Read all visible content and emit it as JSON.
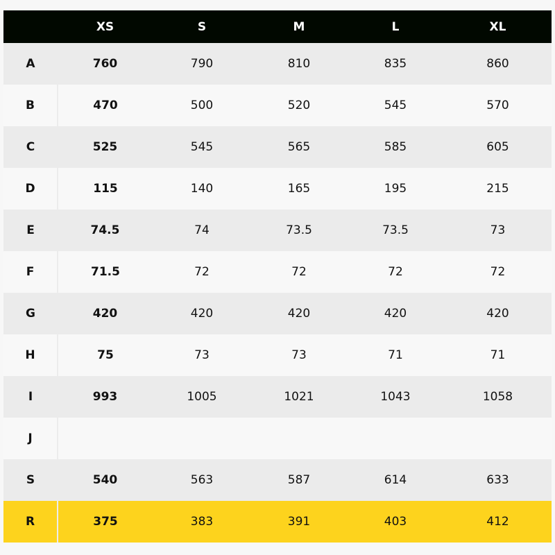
{
  "header": {
    "corner": "",
    "sizes": [
      "XS",
      "S",
      "M",
      "L",
      "XL"
    ]
  },
  "rows": [
    {
      "label": "A",
      "values": [
        "760",
        "790",
        "810",
        "835",
        "860"
      ]
    },
    {
      "label": "B",
      "values": [
        "470",
        "500",
        "520",
        "545",
        "570"
      ]
    },
    {
      "label": "C",
      "values": [
        "525",
        "545",
        "565",
        "585",
        "605"
      ]
    },
    {
      "label": "D",
      "values": [
        "115",
        "140",
        "165",
        "195",
        "215"
      ]
    },
    {
      "label": "E",
      "values": [
        "74.5",
        "74",
        "73.5",
        "73.5",
        "73"
      ]
    },
    {
      "label": "F",
      "values": [
        "71.5",
        "72",
        "72",
        "72",
        "72"
      ]
    },
    {
      "label": "G",
      "values": [
        "420",
        "420",
        "420",
        "420",
        "420"
      ]
    },
    {
      "label": "H",
      "values": [
        "75",
        "73",
        "73",
        "71",
        "71"
      ]
    },
    {
      "label": "I",
      "values": [
        "993",
        "1005",
        "1021",
        "1043",
        "1058"
      ]
    },
    {
      "label": "J",
      "values": [
        "",
        "",
        "",
        "",
        ""
      ]
    },
    {
      "label": "S",
      "values": [
        "540",
        "563",
        "587",
        "614",
        "633"
      ]
    },
    {
      "label": "R",
      "values": [
        "375",
        "383",
        "391",
        "403",
        "412"
      ]
    }
  ],
  "colors": {
    "header_bg": "#010800",
    "row_odd": "#ebebeb",
    "row_even": "#f8f8f8",
    "highlight": "#fdd31d"
  }
}
